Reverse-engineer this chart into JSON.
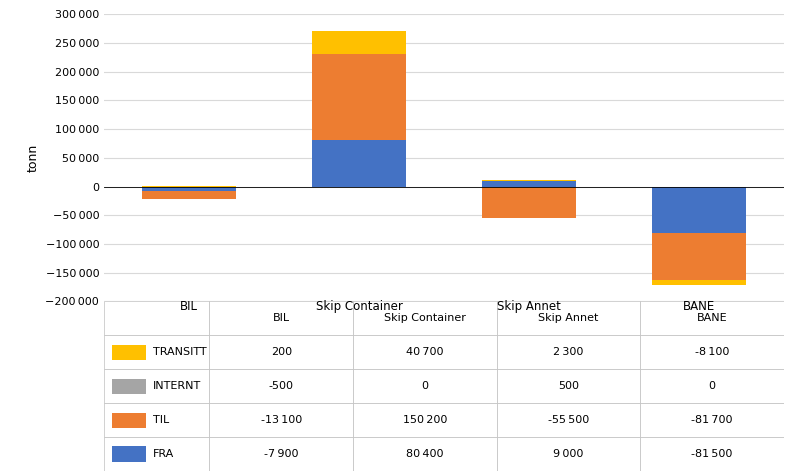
{
  "categories": [
    "BIL",
    "Skip Container",
    "Skip Annet",
    "BANE"
  ],
  "series_order": [
    "FRA",
    "TIL",
    "INTERNT",
    "TRANSITT"
  ],
  "series": {
    "FRA": [
      -7900,
      80400,
      9000,
      -81500
    ],
    "TIL": [
      -13100,
      150200,
      -55500,
      -81700
    ],
    "INTERNT": [
      -500,
      0,
      500,
      0
    ],
    "TRANSITT": [
      200,
      40700,
      2300,
      -8100
    ]
  },
  "colors": {
    "FRA": "#4472C4",
    "TIL": "#ED7D31",
    "INTERNT": "#A5A5A5",
    "TRANSITT": "#FFC000"
  },
  "ylabel": "tonn",
  "ylim": [
    -200000,
    300000
  ],
  "yticks": [
    -200000,
    -150000,
    -100000,
    -50000,
    0,
    50000,
    100000,
    150000,
    200000,
    250000,
    300000
  ],
  "table_rows": [
    "TRANSITT",
    "INTERNT",
    "TIL",
    "FRA"
  ],
  "table_data": {
    "TRANSITT": [
      200,
      40700,
      2300,
      -8100
    ],
    "INTERNT": [
      -500,
      0,
      500,
      0
    ],
    "TIL": [
      -13100,
      150200,
      -55500,
      -81700
    ],
    "FRA": [
      -7900,
      80400,
      9000,
      -81500
    ]
  },
  "bar_width": 0.55,
  "grid_color": "#D9D9D9",
  "border_color": "#BFBFBF"
}
